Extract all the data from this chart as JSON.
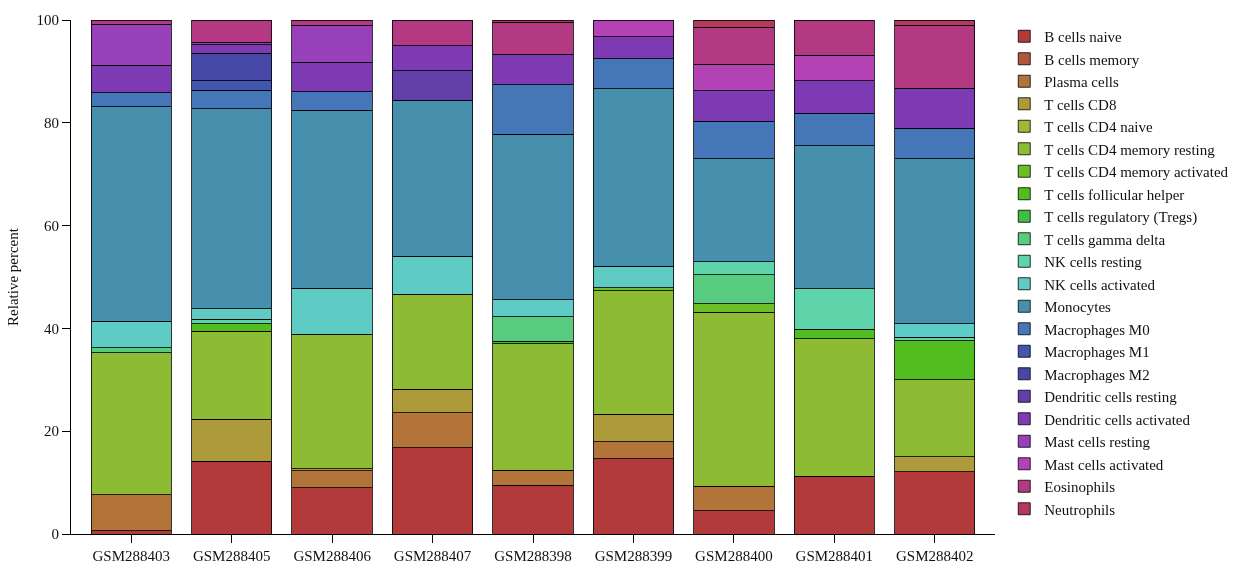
{
  "chart_data": {
    "type": "bar",
    "stacked": true,
    "ylabel": "Relative percent",
    "ylim": [
      0,
      100
    ],
    "yticks": [
      0,
      20,
      40,
      60,
      80,
      100
    ],
    "grid": false,
    "legend": "right",
    "categories": [
      "GSM288403",
      "GSM288405",
      "GSM288406",
      "GSM288407",
      "GSM288398",
      "GSM288399",
      "GSM288400",
      "GSM288401",
      "GSM288402"
    ],
    "series": [
      {
        "name": "B cells naive",
        "color": "#b33a3a",
        "values": [
          0.6,
          14.2,
          9.0,
          16.8,
          9.5,
          14.6,
          4.5,
          11.2,
          12.1
        ]
      },
      {
        "name": "B cells memory",
        "color": "#b3573a",
        "values": [
          null,
          null,
          null,
          null,
          null,
          null,
          null,
          null,
          null
        ]
      },
      {
        "name": "Plasma cells",
        "color": "#b3743a",
        "values": [
          7.0,
          null,
          3.3,
          6.8,
          2.9,
          3.3,
          4.8,
          null,
          null
        ]
      },
      {
        "name": "T cells CD8",
        "color": "#ad9a3a",
        "values": [
          null,
          8.1,
          0.4,
          4.6,
          null,
          5.4,
          null,
          null,
          2.9
        ]
      },
      {
        "name": "T cells CD4 naive",
        "color": "#a8b33a",
        "values": [
          null,
          null,
          null,
          null,
          null,
          null,
          null,
          null,
          null
        ]
      },
      {
        "name": "T cells CD4 memory resting",
        "color": "#8dbb33",
        "values": [
          27.7,
          17.1,
          26.2,
          18.4,
          24.6,
          24.0,
          33.8,
          26.8,
          15.0
        ]
      },
      {
        "name": "T cells CD4 memory activated",
        "color": "#6cbf26",
        "values": [
          null,
          null,
          null,
          null,
          null,
          0.6,
          1.7,
          null,
          null
        ]
      },
      {
        "name": "T cells follicular helper",
        "color": "#52bd1f",
        "values": [
          null,
          1.5,
          null,
          null,
          0.5,
          null,
          null,
          1.8,
          7.6
        ]
      },
      {
        "name": "T cells regulatory (Tregs)",
        "color": "#3fbf3f",
        "values": [
          null,
          null,
          null,
          null,
          null,
          null,
          null,
          null,
          null
        ]
      },
      {
        "name": "T cells gamma delta",
        "color": "#58cc7e",
        "values": [
          0.9,
          null,
          null,
          null,
          4.8,
          null,
          5.6,
          null,
          null
        ]
      },
      {
        "name": "NK cells resting",
        "color": "#5fd3a9",
        "values": [
          null,
          0.9,
          null,
          null,
          null,
          null,
          2.6,
          7.9,
          0.7
        ]
      },
      {
        "name": "NK cells activated",
        "color": "#5ecbc5",
        "values": [
          5.2,
          2.0,
          8.9,
          7.4,
          3.3,
          4.2,
          null,
          null,
          2.6
        ]
      },
      {
        "name": "Monocytes",
        "color": "#4690ad",
        "values": [
          41.7,
          38.9,
          34.6,
          30.4,
          32.2,
          34.5,
          20.0,
          27.8,
          32.1
        ]
      },
      {
        "name": "Macrophages M0",
        "color": "#4576b8",
        "values": [
          2.7,
          3.6,
          3.6,
          null,
          9.6,
          5.9,
          7.3,
          6.4,
          5.9
        ]
      },
      {
        "name": "Macrophages M1",
        "color": "#4057ad",
        "values": [
          null,
          1.9,
          null,
          null,
          null,
          null,
          null,
          null,
          null
        ]
      },
      {
        "name": "Macrophages M2",
        "color": "#4747a6",
        "values": [
          null,
          5.3,
          null,
          null,
          null,
          null,
          null,
          null,
          null
        ]
      },
      {
        "name": "Dendritic cells resting",
        "color": "#6340a8",
        "values": [
          null,
          null,
          null,
          5.7,
          null,
          null,
          null,
          null,
          null
        ]
      },
      {
        "name": "Dendritic cells activated",
        "color": "#7e3ab3",
        "values": [
          5.4,
          1.7,
          5.8,
          4.9,
          5.9,
          4.2,
          5.9,
          6.3,
          7.8
        ]
      },
      {
        "name": "Mast cells resting",
        "color": "#983fba",
        "values": [
          8.0,
          0.5,
          7.2,
          null,
          null,
          null,
          null,
          null,
          null
        ]
      },
      {
        "name": "Mast cells activated",
        "color": "#b342b5",
        "values": [
          null,
          null,
          null,
          null,
          null,
          3.3,
          5.2,
          4.9,
          null
        ]
      },
      {
        "name": "Eosinophils",
        "color": "#b33a82",
        "values": [
          0.8,
          4.3,
          1.0,
          5.0,
          6.3,
          null,
          7.2,
          6.9,
          12.3
        ]
      },
      {
        "name": "Neutrophils",
        "color": "#b33a5a",
        "values": [
          null,
          null,
          null,
          null,
          0.4,
          null,
          1.4,
          null,
          1.0
        ]
      }
    ]
  }
}
